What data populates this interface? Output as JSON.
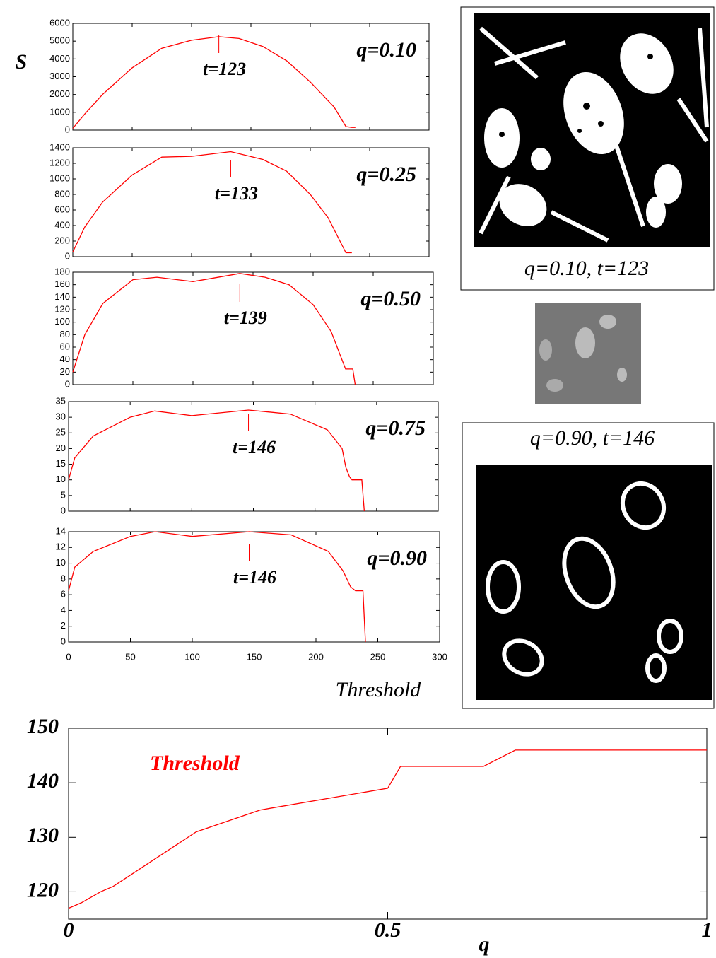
{
  "chart_data": [
    {
      "type": "line",
      "label": "q=0.10",
      "y_label": "S",
      "peak": {
        "text": "t=123",
        "x": 123
      },
      "color": "#ff0000",
      "x": [
        0,
        10,
        25,
        50,
        75,
        100,
        123,
        140,
        160,
        180,
        200,
        220,
        230,
        235,
        238
      ],
      "values": [
        100,
        900,
        2000,
        3500,
        4600,
        5050,
        5250,
        5150,
        4700,
        3900,
        2700,
        1300,
        200,
        150,
        150
      ],
      "xlim": [
        0,
        300
      ],
      "ylim": [
        0,
        6000
      ],
      "yticks": [
        0,
        1000,
        2000,
        3000,
        4000,
        5000,
        6000
      ]
    },
    {
      "type": "line",
      "label": "q=0.25",
      "peak": {
        "text": "t=133",
        "x": 133
      },
      "color": "#ff0000",
      "x": [
        0,
        10,
        25,
        50,
        75,
        100,
        133,
        160,
        180,
        200,
        215,
        225,
        230,
        235
      ],
      "values": [
        60,
        380,
        700,
        1050,
        1280,
        1290,
        1350,
        1250,
        1100,
        800,
        500,
        200,
        50,
        50
      ],
      "xlim": [
        0,
        300
      ],
      "ylim": [
        0,
        1400
      ],
      "yticks": [
        0,
        200,
        400,
        600,
        800,
        1000,
        1200,
        1400
      ]
    },
    {
      "type": "line",
      "label": "q=0.50",
      "peak": {
        "text": "t=139",
        "x": 139
      },
      "color": "#ff0000",
      "x": [
        0,
        10,
        25,
        50,
        70,
        100,
        139,
        160,
        180,
        200,
        215,
        220,
        223,
        227,
        233,
        235
      ],
      "values": [
        20,
        80,
        130,
        168,
        172,
        165,
        178,
        172,
        160,
        128,
        85,
        60,
        45,
        25,
        25,
        0
      ],
      "xlim": [
        0,
        300
      ],
      "ylim": [
        0,
        180
      ],
      "yticks": [
        0,
        20,
        40,
        60,
        80,
        100,
        120,
        140,
        160,
        180
      ]
    },
    {
      "type": "line",
      "label": "q=0.75",
      "peak": {
        "text": "t=146",
        "x": 146
      },
      "color": "#ff0000",
      "x": [
        0,
        5,
        20,
        50,
        70,
        100,
        146,
        180,
        210,
        222,
        225,
        228,
        230,
        238,
        240
      ],
      "values": [
        10,
        17,
        24,
        30,
        32,
        30.5,
        32.3,
        31,
        26,
        20,
        14,
        11,
        10,
        10,
        0
      ],
      "xlim": [
        0,
        300
      ],
      "ylim": [
        0,
        35
      ],
      "yticks": [
        0,
        5,
        10,
        15,
        20,
        25,
        30,
        35
      ]
    },
    {
      "type": "line",
      "label": "q=0.90",
      "x_label": "Threshold",
      "peak": {
        "text": "t=146",
        "x": 146
      },
      "color": "#ff0000",
      "x": [
        0,
        5,
        20,
        50,
        70,
        100,
        146,
        180,
        210,
        222,
        228,
        232,
        238,
        240
      ],
      "values": [
        6.5,
        9.5,
        11.5,
        13.4,
        14,
        13.4,
        14,
        13.6,
        11.5,
        9,
        7,
        6.5,
        6.5,
        0
      ],
      "xlim": [
        0,
        300
      ],
      "ylim": [
        0,
        14
      ],
      "yticks": [
        0,
        2,
        4,
        6,
        8,
        10,
        12,
        14
      ],
      "xticks": [
        0,
        50,
        100,
        150,
        200,
        250,
        300
      ]
    },
    {
      "type": "line",
      "x_label": "q",
      "series_name": "Threshold",
      "color": "#ff0000",
      "x": [
        0,
        0.02,
        0.05,
        0.07,
        0.2,
        0.3,
        0.5,
        0.52,
        0.65,
        0.7,
        1
      ],
      "values": [
        117,
        118,
        120,
        121,
        131,
        135,
        139,
        143,
        143,
        146,
        146
      ],
      "xlim": [
        0,
        1
      ],
      "ylim": [
        115,
        150
      ],
      "yticks": [
        120,
        130,
        140,
        150
      ],
      "xticks": [
        0,
        0.5,
        1
      ]
    }
  ],
  "images": [
    {
      "caption": "q=0.10, t=123"
    },
    {
      "caption": "q=0.90, t=146"
    }
  ]
}
